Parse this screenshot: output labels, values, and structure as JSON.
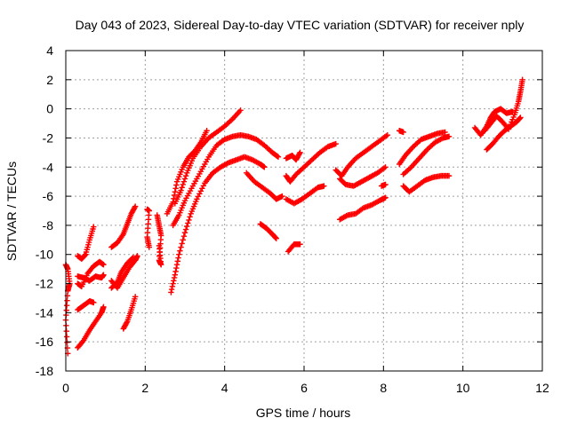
{
  "chart_data": {
    "type": "scatter",
    "title": "Day 043 of 2023, Sidereal Day-to-day VTEC variation (SDTVAR) for receiver nply",
    "xlabel": "GPS time / hours",
    "ylabel": "SDTVAR / TECUs",
    "xlim": [
      0,
      12
    ],
    "ylim": [
      -18,
      4
    ],
    "xticks": [
      0,
      2,
      4,
      6,
      8,
      10,
      12
    ],
    "yticks": [
      -18,
      -16,
      -14,
      -12,
      -10,
      -8,
      -6,
      -4,
      -2,
      0,
      2,
      4
    ],
    "grid": true,
    "marker": "+",
    "color": "#ff0000",
    "series": [
      {
        "name": "track-01",
        "points": [
          [
            0.0,
            -10.7
          ],
          [
            0.05,
            -11.0
          ],
          [
            0.1,
            -12.0
          ],
          [
            0.05,
            -12.5
          ],
          [
            0.0,
            -14.5
          ],
          [
            0.05,
            -16.8
          ]
        ]
      },
      {
        "name": "track-02",
        "points": [
          [
            0.3,
            -11.5
          ],
          [
            0.45,
            -11.6
          ],
          [
            0.6,
            -11.8
          ],
          [
            0.75,
            -11.5
          ],
          [
            0.9,
            -11.6
          ],
          [
            0.95,
            -11.4
          ]
        ]
      },
      {
        "name": "track-03",
        "points": [
          [
            0.3,
            -10.1
          ],
          [
            0.4,
            -10.3
          ],
          [
            0.5,
            -10.0
          ],
          [
            0.6,
            -9.0
          ],
          [
            0.7,
            -8.1
          ]
        ]
      },
      {
        "name": "track-04",
        "points": [
          [
            0.3,
            -12.0
          ],
          [
            0.4,
            -12.2
          ],
          [
            0.55,
            -11.3
          ],
          [
            0.7,
            -10.8
          ],
          [
            0.85,
            -10.5
          ],
          [
            0.95,
            -10.7
          ]
        ]
      },
      {
        "name": "track-05",
        "points": [
          [
            0.3,
            -13.8
          ],
          [
            0.45,
            -13.5
          ],
          [
            0.6,
            -13.2
          ],
          [
            0.7,
            -13.3
          ]
        ]
      },
      {
        "name": "track-06",
        "points": [
          [
            0.3,
            -16.4
          ],
          [
            0.45,
            -15.9
          ],
          [
            0.6,
            -15.2
          ],
          [
            0.75,
            -14.6
          ],
          [
            0.9,
            -14.0
          ],
          [
            0.95,
            -13.6
          ]
        ]
      },
      {
        "name": "track-07",
        "points": [
          [
            1.15,
            -11.8
          ],
          [
            1.3,
            -12.3
          ],
          [
            1.45,
            -11.6
          ],
          [
            1.6,
            -10.9
          ],
          [
            1.75,
            -10.4
          ],
          [
            1.8,
            -10.1
          ]
        ]
      },
      {
        "name": "track-08",
        "points": [
          [
            1.15,
            -9.5
          ],
          [
            1.3,
            -9.2
          ],
          [
            1.45,
            -8.6
          ],
          [
            1.55,
            -7.9
          ],
          [
            1.65,
            -7.2
          ],
          [
            1.75,
            -6.7
          ]
        ]
      },
      {
        "name": "track-09",
        "points": [
          [
            1.15,
            -12.3
          ],
          [
            1.3,
            -11.9
          ],
          [
            1.4,
            -11.2
          ],
          [
            1.55,
            -10.6
          ],
          [
            1.7,
            -10.2
          ]
        ]
      },
      {
        "name": "track-10",
        "points": [
          [
            1.45,
            -15.1
          ],
          [
            1.55,
            -14.6
          ],
          [
            1.65,
            -13.8
          ],
          [
            1.75,
            -12.9
          ]
        ]
      },
      {
        "name": "track-11",
        "points": [
          [
            2.05,
            -6.9
          ],
          [
            2.1,
            -7.0
          ],
          [
            2.05,
            -8.8
          ],
          [
            2.1,
            -9.5
          ]
        ]
      },
      {
        "name": "track-12",
        "points": [
          [
            2.3,
            -7.3
          ],
          [
            2.35,
            -8.0
          ],
          [
            2.4,
            -8.7
          ],
          [
            2.35,
            -10.4
          ],
          [
            2.4,
            -10.7
          ],
          [
            2.35,
            -9.4
          ]
        ]
      },
      {
        "name": "track-13",
        "points": [
          [
            2.65,
            -12.6
          ],
          [
            2.75,
            -11.4
          ],
          [
            2.85,
            -10.0
          ],
          [
            3.0,
            -8.5
          ],
          [
            3.15,
            -7.2
          ],
          [
            3.3,
            -6.2
          ],
          [
            3.5,
            -5.1
          ],
          [
            3.7,
            -4.4
          ],
          [
            3.9,
            -4.0
          ],
          [
            4.1,
            -3.7
          ],
          [
            4.3,
            -3.5
          ],
          [
            4.5,
            -3.3
          ],
          [
            4.7,
            -3.5
          ],
          [
            4.9,
            -3.8
          ],
          [
            5.0,
            -4.0
          ]
        ]
      },
      {
        "name": "track-14",
        "points": [
          [
            2.7,
            -8.0
          ],
          [
            2.85,
            -7.3
          ],
          [
            3.0,
            -6.3
          ],
          [
            3.2,
            -5.3
          ],
          [
            3.4,
            -4.3
          ],
          [
            3.6,
            -3.3
          ],
          [
            3.8,
            -2.5
          ],
          [
            4.0,
            -2.1
          ],
          [
            4.2,
            -1.9
          ],
          [
            4.4,
            -1.8
          ],
          [
            4.6,
            -1.9
          ],
          [
            4.8,
            -2.1
          ],
          [
            5.0,
            -2.5
          ],
          [
            5.2,
            -3.0
          ],
          [
            5.35,
            -3.3
          ]
        ]
      },
      {
        "name": "track-15",
        "points": [
          [
            2.75,
            -6.5
          ],
          [
            2.9,
            -5.6
          ],
          [
            3.05,
            -4.4
          ],
          [
            3.2,
            -3.4
          ],
          [
            3.4,
            -2.6
          ],
          [
            3.6,
            -2.0
          ],
          [
            3.8,
            -1.6
          ],
          [
            4.0,
            -1.2
          ],
          [
            4.2,
            -0.7
          ],
          [
            4.4,
            -0.1
          ]
        ]
      },
      {
        "name": "track-16",
        "points": [
          [
            2.55,
            -7.2
          ],
          [
            2.7,
            -6.4
          ],
          [
            2.8,
            -5.0
          ],
          [
            2.95,
            -4.0
          ],
          [
            3.1,
            -3.3
          ],
          [
            3.25,
            -2.9
          ],
          [
            3.4,
            -2.3
          ],
          [
            3.55,
            -1.5
          ]
        ]
      },
      {
        "name": "track-17",
        "points": [
          [
            4.55,
            -4.4
          ],
          [
            4.75,
            -5.0
          ],
          [
            4.95,
            -5.4
          ],
          [
            5.15,
            -5.8
          ],
          [
            5.3,
            -6.2
          ],
          [
            5.45,
            -6.0
          ]
        ]
      },
      {
        "name": "track-18",
        "points": [
          [
            4.9,
            -7.9
          ],
          [
            5.05,
            -8.2
          ],
          [
            5.2,
            -8.6
          ],
          [
            5.3,
            -8.9
          ]
        ]
      },
      {
        "name": "track-19",
        "points": [
          [
            5.55,
            -3.4
          ],
          [
            5.7,
            -3.2
          ],
          [
            5.8,
            -3.5
          ],
          [
            5.9,
            -3.0
          ]
        ]
      },
      {
        "name": "track-20",
        "points": [
          [
            5.55,
            -4.6
          ],
          [
            5.65,
            -5.0
          ],
          [
            5.8,
            -4.5
          ],
          [
            6.0,
            -4.0
          ],
          [
            6.2,
            -3.5
          ],
          [
            6.4,
            -3.0
          ],
          [
            6.6,
            -2.6
          ],
          [
            6.8,
            -2.4
          ]
        ]
      },
      {
        "name": "track-21",
        "points": [
          [
            5.55,
            -6.2
          ],
          [
            5.75,
            -6.5
          ],
          [
            5.95,
            -6.2
          ],
          [
            6.15,
            -5.8
          ],
          [
            6.35,
            -5.4
          ],
          [
            6.5,
            -5.3
          ]
        ]
      },
      {
        "name": "track-22",
        "points": [
          [
            5.6,
            -9.8
          ],
          [
            5.75,
            -9.3
          ],
          [
            5.9,
            -9.3
          ]
        ]
      },
      {
        "name": "track-23",
        "points": [
          [
            6.8,
            -4.2
          ],
          [
            6.95,
            -4.6
          ],
          [
            7.1,
            -4.0
          ],
          [
            7.3,
            -3.4
          ],
          [
            7.5,
            -3.0
          ],
          [
            7.7,
            -2.6
          ],
          [
            7.9,
            -2.2
          ],
          [
            8.1,
            -1.8
          ]
        ]
      },
      {
        "name": "track-24",
        "points": [
          [
            6.9,
            -4.8
          ],
          [
            7.05,
            -5.2
          ],
          [
            7.25,
            -5.3
          ],
          [
            7.45,
            -5.0
          ],
          [
            7.65,
            -4.7
          ],
          [
            7.85,
            -4.4
          ],
          [
            8.05,
            -4.0
          ]
        ]
      },
      {
        "name": "track-25",
        "points": [
          [
            6.9,
            -7.6
          ],
          [
            7.1,
            -7.3
          ],
          [
            7.3,
            -7.2
          ],
          [
            7.5,
            -6.8
          ],
          [
            7.7,
            -6.6
          ],
          [
            7.9,
            -6.3
          ],
          [
            8.05,
            -6.1
          ]
        ]
      },
      {
        "name": "track-26",
        "points": [
          [
            7.95,
            -5.3
          ],
          [
            8.05,
            -5.2
          ]
        ]
      },
      {
        "name": "track-27",
        "points": [
          [
            8.4,
            -1.5
          ],
          [
            8.5,
            -1.6
          ]
        ]
      },
      {
        "name": "track-28",
        "points": [
          [
            8.4,
            -3.8
          ],
          [
            8.55,
            -3.2
          ],
          [
            8.75,
            -2.6
          ],
          [
            8.95,
            -2.1
          ],
          [
            9.15,
            -1.9
          ],
          [
            9.35,
            -1.7
          ],
          [
            9.55,
            -1.6
          ]
        ]
      },
      {
        "name": "track-29",
        "points": [
          [
            8.5,
            -5.3
          ],
          [
            8.65,
            -5.7
          ],
          [
            8.85,
            -5.3
          ],
          [
            9.05,
            -4.9
          ],
          [
            9.25,
            -4.7
          ],
          [
            9.45,
            -4.6
          ],
          [
            9.65,
            -4.6
          ]
        ]
      },
      {
        "name": "track-30",
        "points": [
          [
            8.5,
            -4.5
          ],
          [
            8.7,
            -4.0
          ],
          [
            8.9,
            -3.4
          ],
          [
            9.1,
            -2.8
          ],
          [
            9.3,
            -2.3
          ],
          [
            9.5,
            -2.0
          ],
          [
            9.65,
            -1.9
          ]
        ]
      },
      {
        "name": "track-31",
        "points": [
          [
            10.3,
            -1.3
          ],
          [
            10.45,
            -1.8
          ],
          [
            10.6,
            -1.2
          ],
          [
            10.7,
            -0.6
          ],
          [
            10.8,
            -0.2
          ],
          [
            10.95,
            0.0
          ],
          [
            11.1,
            -0.3
          ],
          [
            11.25,
            -0.2
          ]
        ]
      },
      {
        "name": "track-32",
        "points": [
          [
            10.6,
            -2.8
          ],
          [
            10.75,
            -2.4
          ],
          [
            10.9,
            -1.9
          ],
          [
            11.05,
            -1.5
          ],
          [
            11.2,
            -1.2
          ],
          [
            11.35,
            -0.9
          ],
          [
            11.45,
            -0.6
          ]
        ]
      },
      {
        "name": "track-33",
        "points": [
          [
            10.55,
            -1.5
          ],
          [
            10.7,
            -1.0
          ],
          [
            10.85,
            -0.5
          ],
          [
            11.0,
            -0.9
          ],
          [
            11.15,
            -1.4
          ],
          [
            11.3,
            -0.4
          ],
          [
            11.4,
            0.5
          ],
          [
            11.45,
            1.2
          ],
          [
            11.5,
            2.0
          ]
        ]
      }
    ]
  }
}
